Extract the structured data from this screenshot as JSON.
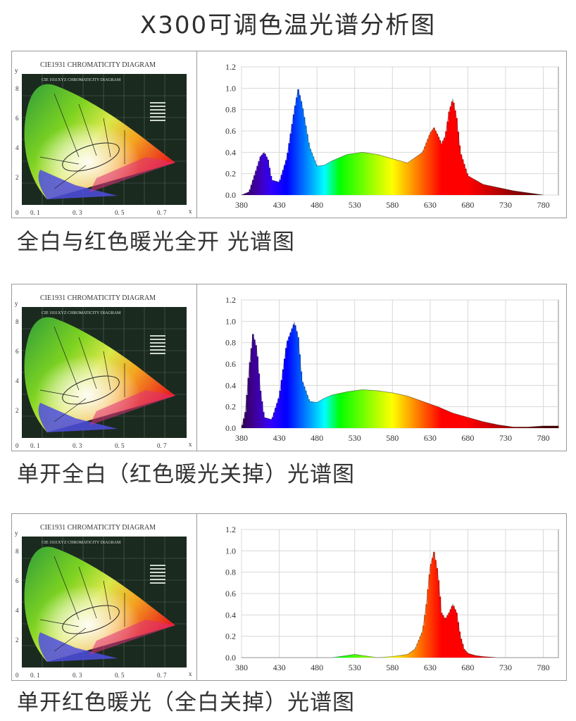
{
  "page_title": "X300可调色温光谱分析图",
  "cie": {
    "title": "CIE1931 CHROMATICITY DIAGRAM",
    "inner_title": "CIE 1931XYZ CHROMATICITY DIAGRAM",
    "y_axis": "y",
    "x_axis": "x",
    "y_ticks": [
      "8",
      "6",
      "4",
      "2",
      "0"
    ],
    "x_ticks": [
      "0. 1",
      "0. 3",
      "0. 5",
      "0. 7"
    ]
  },
  "chart_data": [
    {
      "type": "area",
      "caption": "全白与红色暖光全开 光谱图",
      "x": [
        380,
        390,
        400,
        405,
        410,
        415,
        420,
        430,
        440,
        450,
        455,
        460,
        470,
        480,
        490,
        500,
        520,
        540,
        560,
        580,
        600,
        620,
        630,
        635,
        640,
        645,
        650,
        655,
        660,
        665,
        670,
        680,
        700,
        720,
        740,
        760,
        780
      ],
      "y": [
        0.0,
        0.03,
        0.25,
        0.36,
        0.4,
        0.33,
        0.14,
        0.12,
        0.35,
        0.8,
        0.99,
        0.85,
        0.45,
        0.27,
        0.28,
        0.32,
        0.38,
        0.4,
        0.38,
        0.34,
        0.3,
        0.4,
        0.58,
        0.63,
        0.56,
        0.48,
        0.55,
        0.78,
        0.9,
        0.72,
        0.4,
        0.18,
        0.1,
        0.07,
        0.04,
        0.02,
        0.0
      ],
      "xlim": [
        380,
        800
      ],
      "ylim": [
        0,
        1.2
      ],
      "x_ticks": [
        380,
        430,
        480,
        530,
        580,
        630,
        680,
        730,
        780
      ],
      "y_ticks": [
        "0.0",
        "0.2",
        "0.4",
        "0.6",
        "0.8",
        "1.0",
        "1.2"
      ]
    },
    {
      "type": "area",
      "caption": "单开全白（红色暖光关掉）光谱图",
      "x": [
        380,
        385,
        390,
        395,
        400,
        405,
        410,
        420,
        430,
        440,
        450,
        455,
        460,
        470,
        480,
        490,
        500,
        520,
        540,
        560,
        580,
        600,
        620,
        640,
        660,
        680,
        700,
        720,
        740,
        760,
        780,
        800
      ],
      "y": [
        0.0,
        0.15,
        0.55,
        0.88,
        0.75,
        0.35,
        0.1,
        0.08,
        0.3,
        0.8,
        0.99,
        0.85,
        0.45,
        0.25,
        0.24,
        0.28,
        0.31,
        0.34,
        0.36,
        0.35,
        0.33,
        0.3,
        0.25,
        0.2,
        0.14,
        0.1,
        0.06,
        0.03,
        0.01,
        0.01,
        0.02,
        0.02
      ],
      "xlim": [
        380,
        800
      ],
      "ylim": [
        0,
        1.2
      ],
      "x_ticks": [
        380,
        430,
        480,
        530,
        580,
        630,
        680,
        730,
        780
      ],
      "y_ticks": [
        "0.0",
        "0.2",
        "0.4",
        "0.6",
        "0.8",
        "1.0",
        "1.2"
      ]
    },
    {
      "type": "area",
      "caption": "单开红色暖光（全白关掉）光谱图",
      "x": [
        380,
        500,
        510,
        520,
        530,
        540,
        550,
        560,
        580,
        600,
        610,
        620,
        625,
        630,
        635,
        640,
        645,
        650,
        655,
        660,
        665,
        670,
        675,
        680,
        690,
        700,
        720,
        800
      ],
      "y": [
        0.0,
        0.0,
        0.01,
        0.02,
        0.03,
        0.02,
        0.01,
        0.0,
        0.01,
        0.03,
        0.08,
        0.25,
        0.5,
        0.85,
        0.99,
        0.8,
        0.42,
        0.36,
        0.42,
        0.5,
        0.42,
        0.2,
        0.08,
        0.04,
        0.02,
        0.01,
        0.0,
        0.0
      ],
      "xlim": [
        380,
        800
      ],
      "ylim": [
        0,
        1.2
      ],
      "x_ticks": [
        380,
        430,
        480,
        530,
        580,
        630,
        680,
        730,
        780
      ],
      "y_ticks": [
        "0.0",
        "0.2",
        "0.4",
        "0.6",
        "0.8",
        "1.0",
        "1.2"
      ]
    }
  ]
}
